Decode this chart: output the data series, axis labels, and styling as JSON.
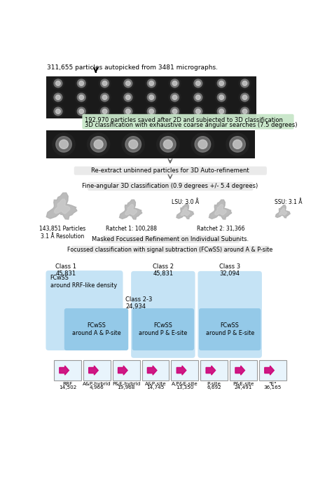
{
  "title_text": "311,655 particles autopicked from 3481 micrographs.",
  "green_box_texts": [
    "192,970 particles saved after 2D and subjected to 3D classification",
    "3D classification with exhaustive coarse angular searches (7.5 degrees)"
  ],
  "reextract_text": "Re-extract unbinned particles for 3D Auto-refinement",
  "fine_angular_text": "Fine-angular 3D classification (0.9 degrees +/- 5.4 degrees)",
  "masked_text": "Masked Focussed Refinement on Individual Subunits.",
  "main_particles": "143,851 Particles\n3.1 Å Resolution",
  "ratchet1": "Ratchet 1: 100,288",
  "lsu": "LSU: 3.0 Å",
  "ratchet2": "Ratchet 2: 31,366",
  "ssu": "SSU: 3.1 Å",
  "focussed_text": "Focussed classification with signal subtraction (FCwSS) around A & P-site",
  "class1_label": "Class 1\n45,831",
  "class2_label": "Class 2\n45,831",
  "class3_label": "Class 3\n32,094",
  "fcwss_rrf": "FCwSS\naround RRF-like density",
  "class23_label": "Class 2-3\n24,934",
  "fcwss_ap": "FCwSS\naround A & P-site",
  "fcwss_pe1": "FCwSS\naround P & E-site",
  "fcwss_pe2": "FCwSS\naround P & E-site",
  "final_labels": [
    "RRF",
    "A&P-hybrid",
    "P&E-hybrid",
    "A&P-site",
    "A,P&E-site",
    "P-site",
    "P&E-site",
    "\"E\""
  ],
  "final_counts": [
    "14,502",
    "4,966",
    "19,968",
    "14,745",
    "13,350",
    "6,692",
    "24,491",
    "36,165"
  ],
  "bg_color": "#ffffff",
  "light_blue": "#c5e3f5",
  "box_blue": "#94c9e8",
  "green_bg": "#c8e6c9",
  "gray_box": "#e8e8e8"
}
